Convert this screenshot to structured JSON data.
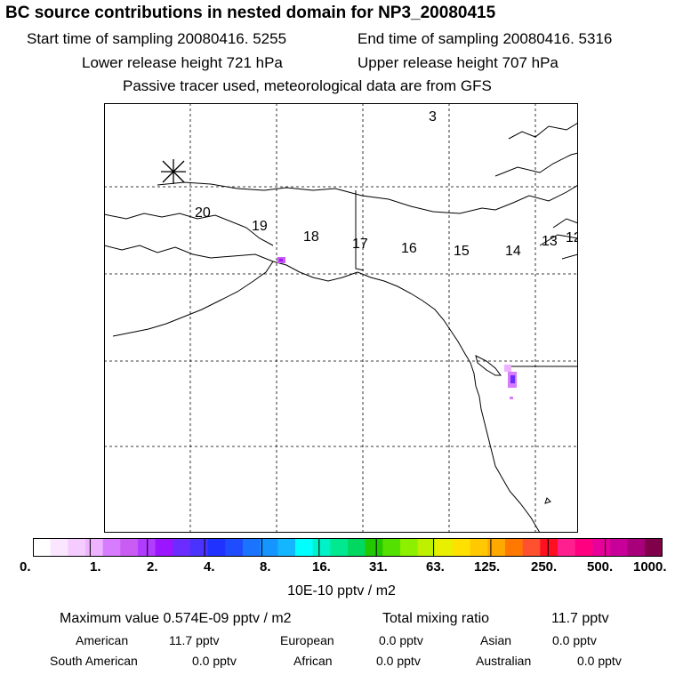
{
  "header": {
    "title": "BC  source contributions in nested domain for NP3_20080415",
    "start_time": "Start time of sampling 20080416.  5255",
    "end_time": "End time of sampling 20080416.  5316",
    "lower_height": "Lower release height  721 hPa",
    "upper_height": "Upper release height  707 hPa",
    "tracer_note": "Passive tracer used, meteorological data are from GFS"
  },
  "map": {
    "track_labels": [
      "3",
      "20",
      "19",
      "18",
      "17",
      "16",
      "15",
      "14",
      "13",
      "12"
    ],
    "receptor_marker": "asterisk-icon"
  },
  "colorbar": {
    "tick_labels": [
      "0.",
      "1.",
      "2.",
      "4.",
      "8.",
      "16.",
      "31.",
      "63.",
      "125.",
      "250.",
      "500.",
      "1000."
    ],
    "colors": [
      "#ffffff",
      "#fbe6ff",
      "#f4ccff",
      "#eeb3ff",
      "#d77bff",
      "#c85cf3",
      "#b13cff",
      "#9b15ff",
      "#6a2cff",
      "#4a32ff",
      "#2032ff",
      "#1f4cff",
      "#1b74ff",
      "#1795ff",
      "#13b6ff",
      "#00ffff",
      "#00f2c8",
      "#00e890",
      "#00d860",
      "#22c800",
      "#54e000",
      "#8cf000",
      "#bff000",
      "#e8f000",
      "#ffe000",
      "#ffc800",
      "#ffa800",
      "#ff7800",
      "#ff5030",
      "#ff1020",
      "#ff2090",
      "#ff0080",
      "#e8009a",
      "#c8009a",
      "#a8007a",
      "#80004a"
    ],
    "units_label": "10E-10 pptv / m2"
  },
  "stats": {
    "max_value": "Maximum value  0.574E-09 pptv / m2",
    "total_mixing": "Total mixing ratio",
    "total_value": "11.7 pptv",
    "american_label": "American",
    "american_value": "11.7 pptv",
    "european_label": "European",
    "european_value": "0.0 pptv",
    "asian_label": "Asian",
    "asian_value": "0.0 pptv",
    "south_american_label": "South American",
    "south_american_value": "0.0 pptv",
    "african_label": "African",
    "african_value": "0.0 pptv",
    "australian_label": "Australian",
    "australian_value": "0.0 pptv"
  }
}
